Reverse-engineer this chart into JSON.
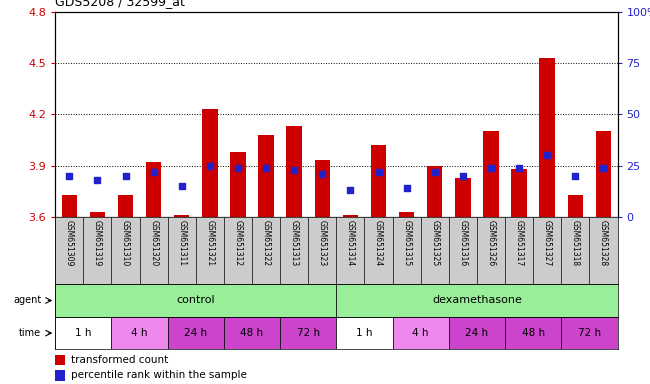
{
  "title": "GDS5208 / 32599_at",
  "samples": [
    "GSM651309",
    "GSM651319",
    "GSM651310",
    "GSM651320",
    "GSM651311",
    "GSM651321",
    "GSM651312",
    "GSM651322",
    "GSM651313",
    "GSM651323",
    "GSM651314",
    "GSM651324",
    "GSM651315",
    "GSM651325",
    "GSM651316",
    "GSM651326",
    "GSM651317",
    "GSM651327",
    "GSM651318",
    "GSM651328"
  ],
  "transformed_count": [
    3.73,
    3.63,
    3.73,
    3.92,
    3.61,
    4.23,
    3.98,
    4.08,
    4.13,
    3.93,
    3.61,
    4.02,
    3.63,
    3.9,
    3.83,
    4.1,
    3.88,
    4.53,
    3.73,
    4.1
  ],
  "percentile_rank": [
    20,
    18,
    20,
    22,
    15,
    25,
    24,
    24,
    23,
    21,
    13,
    22,
    14,
    22,
    20,
    24,
    24,
    30,
    20,
    24
  ],
  "ylim_left": [
    3.6,
    4.8
  ],
  "ylim_right": [
    0,
    100
  ],
  "yticks_left": [
    3.6,
    3.9,
    4.2,
    4.5,
    4.8
  ],
  "yticks_right": [
    0,
    25,
    50,
    75,
    100
  ],
  "ytick_labels_right": [
    "0",
    "25",
    "50",
    "75",
    "100%"
  ],
  "bar_color_red": "#cc0000",
  "bar_color_blue": "#2222cc",
  "bg_color": "#ffffff",
  "plot_bg": "#ffffff",
  "gsm_bg": "#cccccc",
  "agent_control_color": "#99ee99",
  "agent_dex_color": "#99ee99",
  "time_colors": [
    "#ffffff",
    "#ee88ee",
    "#cc44cc",
    "#cc44cc",
    "#cc44cc",
    "#ffffff",
    "#ee88ee",
    "#cc44cc",
    "#cc44cc",
    "#cc44cc"
  ],
  "time_labels": [
    "1 h",
    "4 h",
    "24 h",
    "48 h",
    "72 h",
    "1 h",
    "4 h",
    "24 h",
    "48 h",
    "72 h"
  ],
  "legend_items": [
    {
      "label": "transformed count",
      "color": "#cc0000"
    },
    {
      "label": "percentile rank within the sample",
      "color": "#2222cc"
    }
  ],
  "tick_label_color_left": "#cc0000",
  "tick_label_color_right": "#2222cc",
  "bar_width": 0.55,
  "base_value": 3.6
}
